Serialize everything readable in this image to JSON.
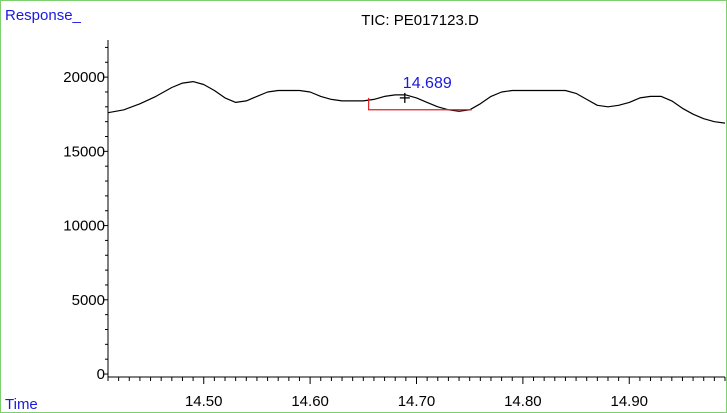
{
  "chart_data": {
    "type": "line",
    "title": "TIC: PE017123.D",
    "ylabel": "Response_",
    "xlabel": "Time",
    "xlim": [
      14.41,
      14.99
    ],
    "ylim": [
      -200,
      22500
    ],
    "x_ticks": [
      14.5,
      14.6,
      14.7,
      14.8,
      14.9
    ],
    "x_tick_labels": [
      "14.50",
      "14.60",
      "14.70",
      "14.80",
      "14.90"
    ],
    "y_ticks": [
      0,
      5000,
      10000,
      15000,
      20000
    ],
    "y_tick_labels": [
      "0",
      "5000",
      "10000",
      "15000",
      "20000"
    ],
    "series": [
      {
        "color": "#000000",
        "x": [
          14.41,
          14.425,
          14.44,
          14.455,
          14.47,
          14.48,
          14.49,
          14.5,
          14.51,
          14.52,
          14.53,
          14.54,
          14.55,
          14.56,
          14.57,
          14.58,
          14.59,
          14.6,
          14.61,
          14.62,
          14.63,
          14.64,
          14.65,
          14.66,
          14.67,
          14.68,
          14.69,
          14.7,
          14.71,
          14.72,
          14.73,
          14.74,
          14.75,
          14.76,
          14.77,
          14.78,
          14.79,
          14.8,
          14.81,
          14.82,
          14.83,
          14.84,
          14.85,
          14.86,
          14.87,
          14.88,
          14.89,
          14.9,
          14.91,
          14.92,
          14.93,
          14.94,
          14.95,
          14.96,
          14.97,
          14.98,
          14.99
        ],
        "y": [
          17600,
          17800,
          18200,
          18700,
          19300,
          19600,
          19700,
          19500,
          19100,
          18600,
          18300,
          18400,
          18700,
          19000,
          19100,
          19100,
          19100,
          19000,
          18700,
          18500,
          18400,
          18400,
          18400,
          18500,
          18700,
          18800,
          18800,
          18600,
          18300,
          18000,
          17800,
          17700,
          17800,
          18200,
          18700,
          19000,
          19100,
          19100,
          19100,
          19100,
          19100,
          19100,
          18900,
          18500,
          18100,
          18000,
          18100,
          18300,
          18600,
          18700,
          18700,
          18400,
          17900,
          17500,
          17200,
          17000,
          16900
        ]
      }
    ],
    "annotations": [
      {
        "text": "14.689",
        "x": 14.689,
        "y": 18600,
        "color": "#1a1adf"
      }
    ],
    "baseline_marker": {
      "x_start": 14.655,
      "x_end": 14.752,
      "y_top": 18600,
      "y_base": 17800,
      "color": "#e02020"
    }
  }
}
